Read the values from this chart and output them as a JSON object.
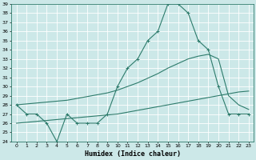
{
  "xlabel": "Humidex (Indice chaleur)",
  "bg_color": "#cce8e8",
  "grid_color": "#ffffff",
  "line_color": "#2d7b6b",
  "xlim": [
    -0.5,
    23.5
  ],
  "ylim": [
    24,
    39
  ],
  "xticks": [
    0,
    1,
    2,
    3,
    4,
    5,
    6,
    7,
    8,
    9,
    10,
    11,
    12,
    13,
    14,
    15,
    16,
    17,
    18,
    19,
    20,
    21,
    22,
    23
  ],
  "yticks": [
    24,
    25,
    26,
    27,
    28,
    29,
    30,
    31,
    32,
    33,
    34,
    35,
    36,
    37,
    38,
    39
  ],
  "line1_x": [
    0,
    1,
    2,
    3,
    4,
    5,
    6,
    7,
    8,
    9,
    10,
    11,
    12,
    13,
    14,
    15,
    16,
    17,
    18,
    19,
    20,
    21,
    22,
    23
  ],
  "line1_y": [
    28,
    27,
    27,
    26,
    24,
    27,
    26,
    26,
    26,
    27,
    30,
    32,
    33,
    35,
    36,
    39,
    39,
    38,
    35,
    34,
    30,
    27,
    27,
    27
  ],
  "line2_x": [
    0,
    1,
    2,
    3,
    4,
    5,
    6,
    7,
    8,
    9,
    10,
    11,
    12,
    13,
    14,
    15,
    16,
    17,
    18,
    19,
    20,
    21,
    22,
    23
  ],
  "line2_y": [
    26.0,
    26.1,
    26.2,
    26.3,
    26.4,
    26.5,
    26.6,
    26.7,
    26.8,
    26.9,
    27.0,
    27.2,
    27.4,
    27.6,
    27.8,
    28.0,
    28.2,
    28.4,
    28.6,
    28.8,
    29.0,
    29.2,
    29.4,
    29.5
  ],
  "line3_x": [
    0,
    1,
    2,
    3,
    4,
    5,
    6,
    7,
    8,
    9,
    10,
    11,
    12,
    13,
    14,
    15,
    16,
    17,
    18,
    19,
    20,
    21,
    22,
    23
  ],
  "line3_y": [
    28.0,
    28.1,
    28.2,
    28.3,
    28.4,
    28.5,
    28.7,
    28.9,
    29.1,
    29.3,
    29.6,
    30.0,
    30.4,
    30.9,
    31.4,
    32.0,
    32.5,
    33.0,
    33.3,
    33.5,
    33.0,
    29.0,
    28.0,
    27.5
  ]
}
